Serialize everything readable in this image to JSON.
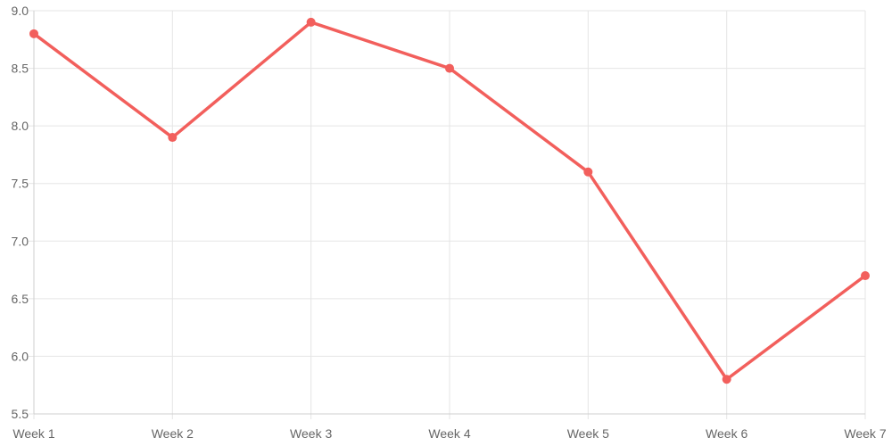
{
  "chart_data": {
    "type": "line",
    "categories": [
      "Week 1",
      "Week 2",
      "Week 3",
      "Week 4",
      "Week 5",
      "Week 6",
      "Week 7"
    ],
    "series": [
      {
        "values": [
          8.8,
          7.9,
          8.9,
          8.5,
          7.6,
          5.8,
          6.7
        ],
        "color": "#f25f5c"
      }
    ],
    "ylim": [
      5.5,
      9.0
    ],
    "yticks": [
      "9.0",
      "8.5",
      "8.0",
      "7.5",
      "7.0",
      "6.5",
      "6.0",
      "5.5"
    ],
    "grid": true,
    "legend": "none"
  }
}
